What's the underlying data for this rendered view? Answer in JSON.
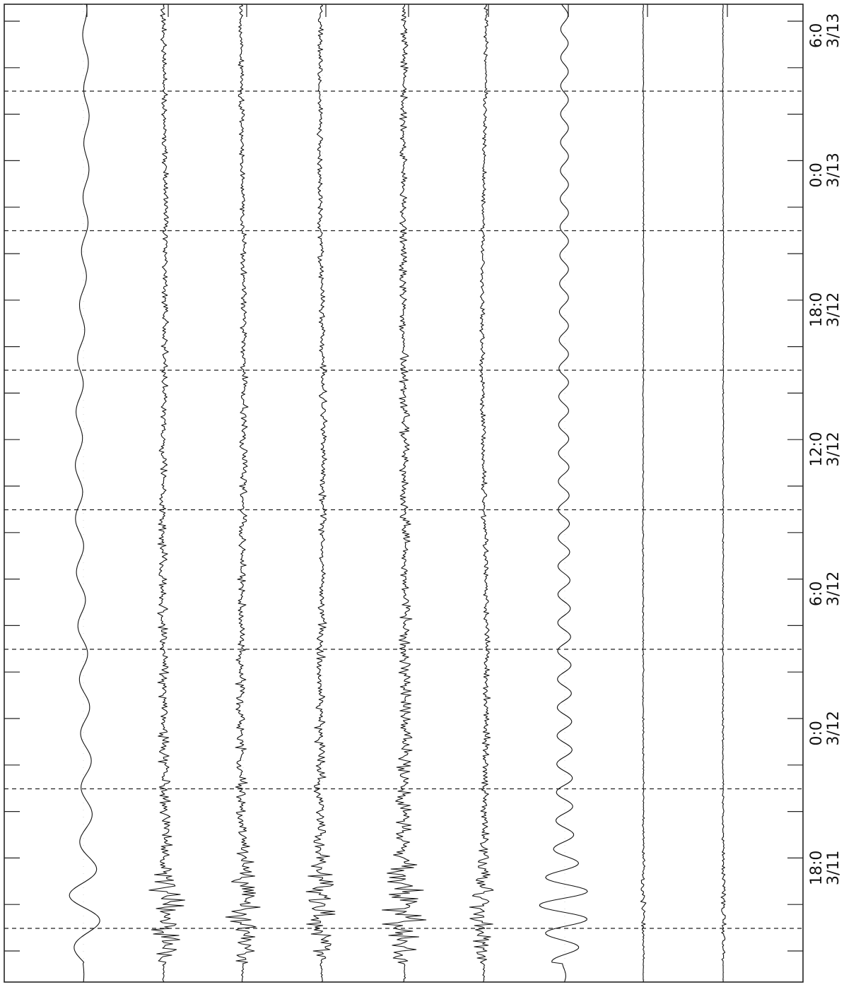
{
  "chart_data": {
    "type": "line",
    "title": "",
    "xlabel": "",
    "ylabel": "",
    "time_axis": {
      "orientation": "vertical",
      "direction": "time increases upward",
      "tick_labels": [
        {
          "time": "18:0",
          "date": "3/11"
        },
        {
          "time": "0:0",
          "date": "3/12"
        },
        {
          "time": "6:0",
          "date": "3/12"
        },
        {
          "time": "12:0",
          "date": "3/12"
        },
        {
          "time": "18:0",
          "date": "3/12"
        },
        {
          "time": "0:0",
          "date": "3/13"
        },
        {
          "time": "6:0",
          "date": "3/13"
        }
      ],
      "range": [
        "3/11 ~14:00",
        "3/13 ~06:40"
      ],
      "gridlines": "dashed, every 6 hours, offset 3 hours from labels"
    },
    "traces": [
      {
        "character": "long-period drift, large early excursion",
        "amplitude": 0.55,
        "period": 38,
        "drift": 0.9
      },
      {
        "character": "dense noise, decays with time",
        "amplitude": 0.75,
        "period": 7,
        "drift": 0.35
      },
      {
        "character": "dense noise, decays with time",
        "amplitude": 0.7,
        "period": 7,
        "drift": 0.4
      },
      {
        "character": "dense noise, decays with time",
        "amplitude": 0.7,
        "period": 7,
        "drift": 0.4
      },
      {
        "character": "high-amplitude dense noise",
        "amplitude": 1.0,
        "period": 6,
        "drift": 0.3
      },
      {
        "character": "moderate noise, decays with time",
        "amplitude": 0.5,
        "period": 8,
        "drift": 0.5
      },
      {
        "character": "regular oscillation, bursts early",
        "amplitude": 0.85,
        "period": 20,
        "drift": 0.1
      },
      {
        "character": "nearly flat, small spike at start",
        "amplitude": 0.06,
        "period": 10,
        "drift": 0.05
      },
      {
        "character": "nearly flat, small spike at start",
        "amplitude": 0.06,
        "period": 10,
        "drift": 0.05
      }
    ],
    "grid": true,
    "legend": "none",
    "colors": {
      "trace": "#111111",
      "grid": "#222222",
      "background": "#ffffff"
    }
  }
}
